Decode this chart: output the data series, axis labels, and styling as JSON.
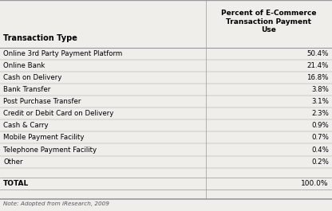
{
  "header_col1": "Transaction Type",
  "header_col2": "Percent of E-Commerce\nTransaction Payment\nUse",
  "rows": [
    [
      "Online 3rd Party Payment Platform",
      "50.4%"
    ],
    [
      "Online Bank",
      "21.4%"
    ],
    [
      "Cash on Delivery",
      "16.8%"
    ],
    [
      "Bank Transfer",
      "3.8%"
    ],
    [
      "Post Purchase Transfer",
      "3.1%"
    ],
    [
      "Credit or Debit Card on Delivery",
      "2.3%"
    ],
    [
      "Cash & Carry",
      "0.9%"
    ],
    [
      "Mobile Payment Facility",
      "0.7%"
    ],
    [
      "Telephone Payment Facility",
      "0.4%"
    ],
    [
      "Other",
      "0.2%"
    ]
  ],
  "total_row": [
    "TOTAL",
    "100.0%"
  ],
  "note": "Note: Adopted from iResearch, 2009",
  "bg_color": "#f0eeeb",
  "line_color": "#999999",
  "text_color": "#000000",
  "col_split": 0.62,
  "fig_width": 4.16,
  "fig_height": 2.65,
  "dpi": 100
}
